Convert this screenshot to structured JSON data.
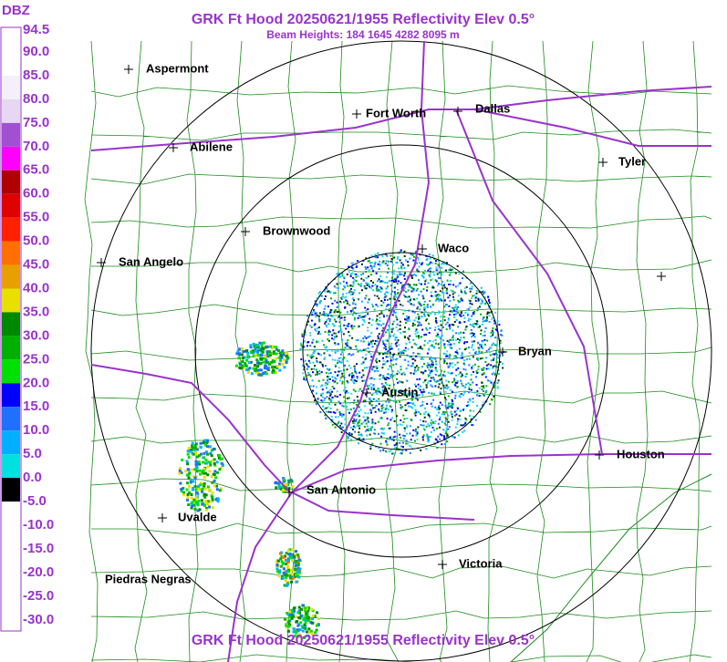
{
  "header": {
    "title": "GRK Ft Hood 20250621/1955 Reflectivity Elev 0.5°",
    "subtitle": "Beam Heights: 184 1645 4282 8095 m",
    "footer": "GRK Ft Hood 20250621/1955 Reflectivity Elev 0.5°"
  },
  "legend": {
    "unit": "DBZ",
    "labels": [
      "94.5",
      "90.0",
      "85.0",
      "80.0",
      "75.0",
      "70.0",
      "65.0",
      "60.0",
      "55.0",
      "50.0",
      "45.0",
      "40.0",
      "35.0",
      "30.0",
      "25.0",
      "20.0",
      "15.0",
      "10.0",
      "5.0",
      "0.0",
      "-5.0",
      "-10.0",
      "-15.0",
      "-20.0",
      "-25.0",
      "-30.0"
    ],
    "colors": [
      "#ffffff",
      "#ffffff",
      "#f4f0fa",
      "#e6d8f2",
      "#a050d0",
      "#ff00ff",
      "#b00000",
      "#e00000",
      "#ff2000",
      "#ff7000",
      "#e8a000",
      "#e8e000",
      "#008800",
      "#00b000",
      "#00e000",
      "#0000ff",
      "#2070ff",
      "#00b0ff",
      "#00e0e0",
      "#000000",
      "#ffffff",
      "#ffffff",
      "#ffffff",
      "#ffffff",
      "#ffffff"
    ]
  },
  "cities": [
    "Aspermont",
    "Fort Worth",
    "Dallas",
    "Abilene",
    "Tyler",
    "Brownwood",
    "Waco",
    "San Angelo",
    "Bryan",
    "Austin",
    "Houston",
    "San Antonio",
    "Uvalde",
    "Victoria",
    "Piedras Negras"
  ]
}
